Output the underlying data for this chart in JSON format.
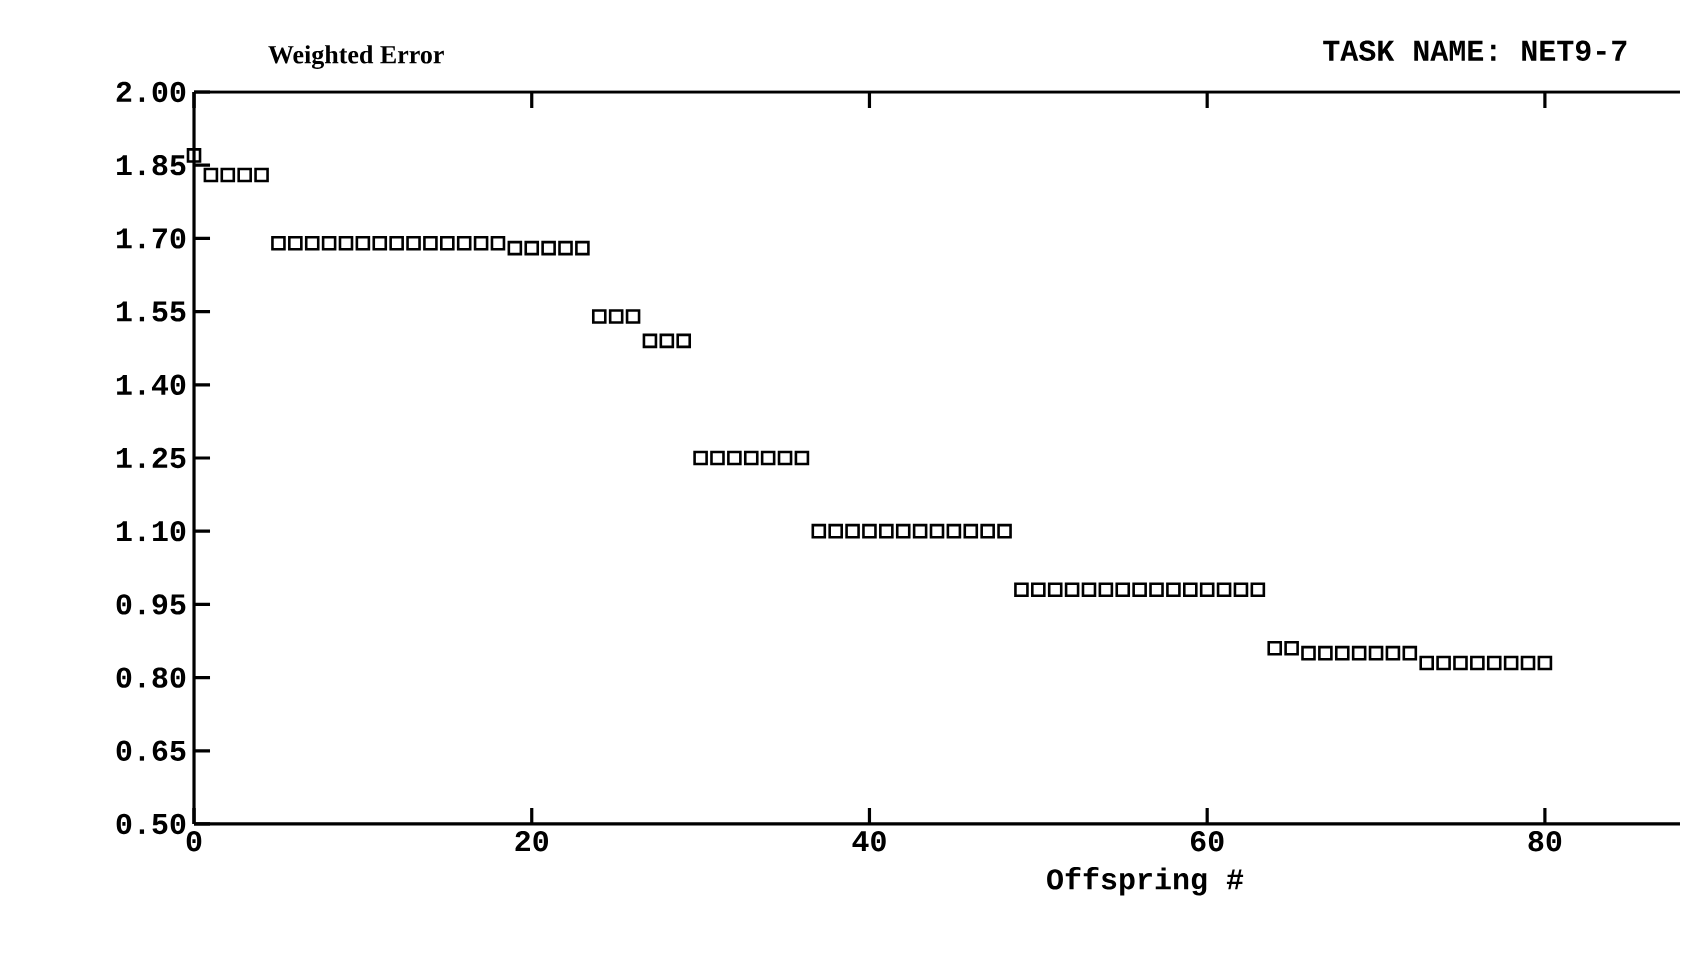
{
  "chart_data": {
    "type": "scatter",
    "title": "TASK NAME: NET9-7",
    "ylabel": "Weighted Error",
    "xlabel": "Offspring #",
    "marker": "square",
    "grid": false,
    "xlim": [
      0,
      88
    ],
    "ylim": [
      0.5,
      2.0
    ],
    "xticks": [
      0,
      20,
      40,
      60,
      80
    ],
    "yticks": [
      {
        "value": 0.5,
        "label": "0.50"
      },
      {
        "value": 0.65,
        "label": "0.65"
      },
      {
        "value": 0.8,
        "label": "0.80"
      },
      {
        "value": 0.95,
        "label": "0.95"
      },
      {
        "value": 1.1,
        "label": "1.10"
      },
      {
        "value": 1.25,
        "label": "1.25"
      },
      {
        "value": 1.4,
        "label": "1.40"
      },
      {
        "value": 1.55,
        "label": "1.55"
      },
      {
        "value": 1.7,
        "label": "1.70"
      },
      {
        "value": 1.85,
        "label": "1.85"
      },
      {
        "value": 2.0,
        "label": "2.00"
      }
    ],
    "x": [
      0,
      1,
      2,
      3,
      4,
      5,
      6,
      7,
      8,
      9,
      10,
      11,
      12,
      13,
      14,
      15,
      16,
      17,
      18,
      19,
      20,
      21,
      22,
      23,
      24,
      25,
      26,
      27,
      28,
      29,
      30,
      31,
      32,
      33,
      34,
      35,
      36,
      37,
      38,
      39,
      40,
      41,
      42,
      43,
      44,
      45,
      46,
      47,
      48,
      49,
      50,
      51,
      52,
      53,
      54,
      55,
      56,
      57,
      58,
      59,
      60,
      61,
      62,
      63,
      64,
      65,
      66,
      67,
      68,
      69,
      70,
      71,
      72,
      73,
      74,
      75,
      76,
      77,
      78,
      79,
      80
    ],
    "series": [
      {
        "color": "#000000",
        "values": [
          1.87,
          1.83,
          1.83,
          1.83,
          1.83,
          1.69,
          1.69,
          1.69,
          1.69,
          1.69,
          1.69,
          1.69,
          1.69,
          1.69,
          1.69,
          1.69,
          1.69,
          1.69,
          1.69,
          1.68,
          1.68,
          1.68,
          1.68,
          1.68,
          1.54,
          1.54,
          1.54,
          1.49,
          1.49,
          1.49,
          1.25,
          1.25,
          1.25,
          1.25,
          1.25,
          1.25,
          1.25,
          1.1,
          1.1,
          1.1,
          1.1,
          1.1,
          1.1,
          1.1,
          1.1,
          1.1,
          1.1,
          1.1,
          1.1,
          0.98,
          0.98,
          0.98,
          0.98,
          0.98,
          0.98,
          0.98,
          0.98,
          0.98,
          0.98,
          0.98,
          0.98,
          0.98,
          0.98,
          0.98,
          0.86,
          0.86,
          0.85,
          0.85,
          0.85,
          0.85,
          0.85,
          0.85,
          0.85,
          0.83,
          0.83,
          0.83,
          0.83,
          0.83,
          0.83,
          0.83,
          0.83
        ]
      }
    ]
  }
}
